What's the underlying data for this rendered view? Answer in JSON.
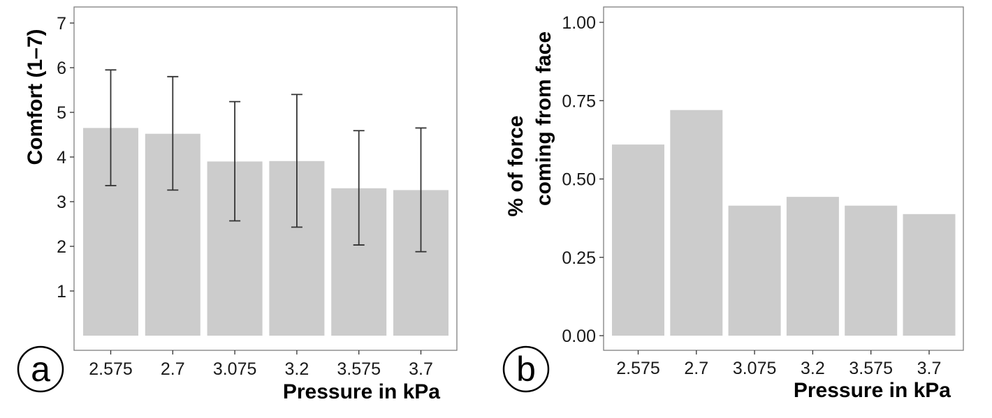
{
  "colors": {
    "bar": "#cccccc",
    "error_bar": "#333333",
    "panel_border": "#7f7f7f",
    "tick": "#333333",
    "text": "#1a1a1a"
  },
  "chart_data": [
    {
      "type": "bar",
      "panel_label": "a",
      "categories": [
        "2.575",
        "2.7",
        "3.075",
        "3.2",
        "3.575",
        "3.7"
      ],
      "values": [
        4.65,
        4.52,
        3.9,
        3.91,
        3.3,
        3.26
      ],
      "error_bars": {
        "lower": [
          3.36,
          3.26,
          2.57,
          2.43,
          2.03,
          1.88
        ],
        "upper": [
          5.95,
          5.8,
          5.24,
          5.4,
          4.59,
          4.65
        ]
      },
      "ylabel": "Comfort (1–7)",
      "xlabel": "Pressure in kPa",
      "yticks": [
        1,
        2,
        3,
        4,
        5,
        6,
        7
      ],
      "ylim": [
        0,
        7
      ],
      "grid": false
    },
    {
      "type": "bar",
      "panel_label": "b",
      "categories": [
        "2.575",
        "2.7",
        "3.075",
        "3.2",
        "3.575",
        "3.7"
      ],
      "values": [
        0.61,
        0.72,
        0.415,
        0.443,
        0.415,
        0.388
      ],
      "ylabel_lines": [
        "% of force",
        "coming from face"
      ],
      "xlabel": "Pressure in kPa",
      "yticks": [
        "0.00",
        "0.25",
        "0.50",
        "0.75",
        "1.00"
      ],
      "ylim": [
        0,
        1
      ],
      "grid": false
    }
  ]
}
